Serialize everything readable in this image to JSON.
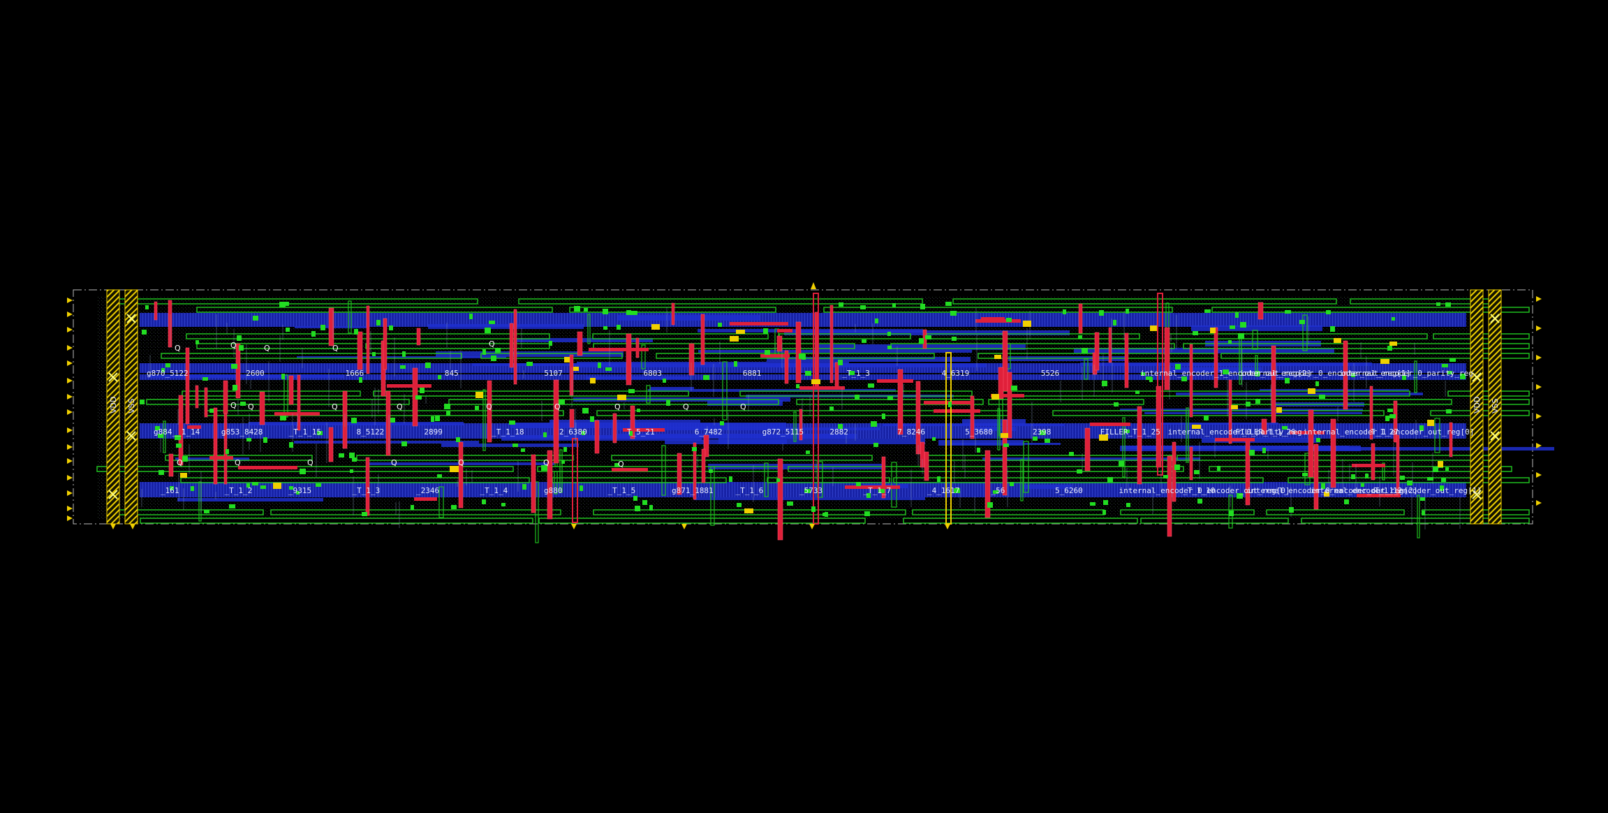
{
  "colors": {
    "background": "#000000",
    "metal_h": "#1f2fd0",
    "metal_v": "#e0203a",
    "outline_green": "#1fbf1f",
    "via_green": "#22dd22",
    "pin_yellow": "#f0d000",
    "boundary": "#bbbbbb",
    "text": "#e8ecff"
  },
  "rails": {
    "left": [
      "VDD",
      "VSS"
    ],
    "right": [
      "VDD",
      "VSS"
    ]
  },
  "row_labels": {
    "row1": [
      "g870_5122",
      "2600",
      "1666",
      "845",
      "5107",
      "6803",
      "6881",
      "_T_1_3",
      "4_6319",
      "5526",
      "internal_encoder_1_encoder_out_reg[2]",
      "internal_encoder_0_encoder_out_reg[1]",
      "internal_encoder_0_parity_reg"
    ],
    "row2": [
      "g884__1_14",
      "g853_8428",
      "_T_1_15",
      "8_5122",
      "2899",
      "_T_1_18",
      "2_6380",
      "T_5_21",
      "6_7482",
      "g872_5115",
      "2882",
      "7_8246",
      "5_3680",
      "2398",
      "FILLER_T_1_25",
      "internal_encoder_0_parity_reg",
      "FILLER_T_1_26",
      "internal_encoder_1_encoder_out_reg[0]",
      "T_1_27"
    ],
    "row3": [
      "_161",
      "_T_1_2",
      "_9315",
      "_T_1_3",
      "_2346",
      "_T_1_4",
      "g880",
      "_T_1_5",
      "g871_1881",
      "_T_1_6",
      "_5733",
      "_T_1_7",
      "_4_1617",
      "_56",
      "5_6260",
      "internal_encoder_0_encoder_out_reg[0]",
      "_T_1_10",
      "internal_encoder_0_encoder_out_reg[2]",
      "internal_encoder_1_encoder_out_reg[1]",
      "T_1_12"
    ]
  },
  "q_marks": [
    "Q",
    "Q",
    "Q",
    "Q",
    "Q",
    "Q",
    "Q",
    "Q",
    "Q",
    "Q",
    "Q",
    "Q",
    "Q",
    "Q",
    "Q",
    "Q",
    "Q",
    "Q",
    "Q",
    "Q",
    "Q"
  ]
}
